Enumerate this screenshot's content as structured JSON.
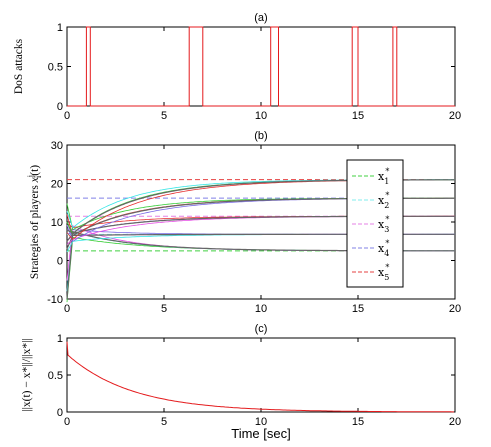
{
  "colors": {
    "attack": "#e41a1c",
    "x1": "#33cc33",
    "x2": "#33e6e6",
    "x3": "#e64de6",
    "x4": "#7a6ae6",
    "x5": "#e62e2e",
    "gray": "#666666",
    "ref_x1": "#40d040",
    "ref_x2": "#80eeee",
    "ref_x3": "#e680e6",
    "ref_x4": "#8080e6",
    "ref_x5": "#e64040"
  },
  "chart_data": [
    {
      "type": "line",
      "title": "(a)",
      "ylabel": "DoS attacks",
      "xlim": [
        0,
        20
      ],
      "ylim": [
        0,
        1
      ],
      "xticks": [
        "0",
        "5",
        "10",
        "15",
        "20"
      ],
      "yticks": [
        "0",
        "0.5",
        "1"
      ],
      "attack_intervals": [
        [
          1.0,
          1.2
        ],
        [
          6.3,
          7.0
        ],
        [
          10.5,
          10.9
        ],
        [
          14.7,
          15.0
        ],
        [
          16.8,
          17.0
        ]
      ]
    },
    {
      "type": "line",
      "title": "(b)",
      "ylabel": "Strategies of players",
      "ylabel_symbol": "x",
      "ylabel_super": "j",
      "ylabel_sub": "i",
      "ylabel_arg": "(t)",
      "xlim": [
        0,
        20
      ],
      "ylim": [
        -10,
        30
      ],
      "xticks": [
        "0",
        "5",
        "10",
        "15",
        "20"
      ],
      "yticks": [
        "-10",
        "0",
        "10",
        "20",
        "30"
      ],
      "legend_position": "right",
      "series": [
        {
          "name": "x",
          "sub": "1",
          "super": "*",
          "equilibrium": 2.5,
          "final": 2.5
        },
        {
          "name": "x",
          "sub": "2",
          "super": "*",
          "equilibrium": 6.8,
          "final": 6.8
        },
        {
          "name": "x",
          "sub": "3",
          "super": "*",
          "equilibrium": 11.5,
          "final": 11.5
        },
        {
          "name": "x",
          "sub": "4",
          "super": "*",
          "equilibrium": 16.2,
          "final": 16.2
        },
        {
          "name": "x",
          "sub": "5",
          "super": "*",
          "equilibrium": 21.0,
          "final": 21.0
        }
      ]
    },
    {
      "type": "line",
      "title": "(c)",
      "ylabel": "||x(t) − x*||/||x*||",
      "xlabel": "Time [sec]",
      "xlim": [
        0,
        20
      ],
      "ylim": [
        0,
        1
      ],
      "xticks": [
        "0",
        "5",
        "10",
        "15",
        "20"
      ],
      "yticks": [
        "0",
        "0.5",
        "1"
      ],
      "series": [
        {
          "start_value": 0.78,
          "decay_rate": 0.3
        }
      ]
    }
  ]
}
